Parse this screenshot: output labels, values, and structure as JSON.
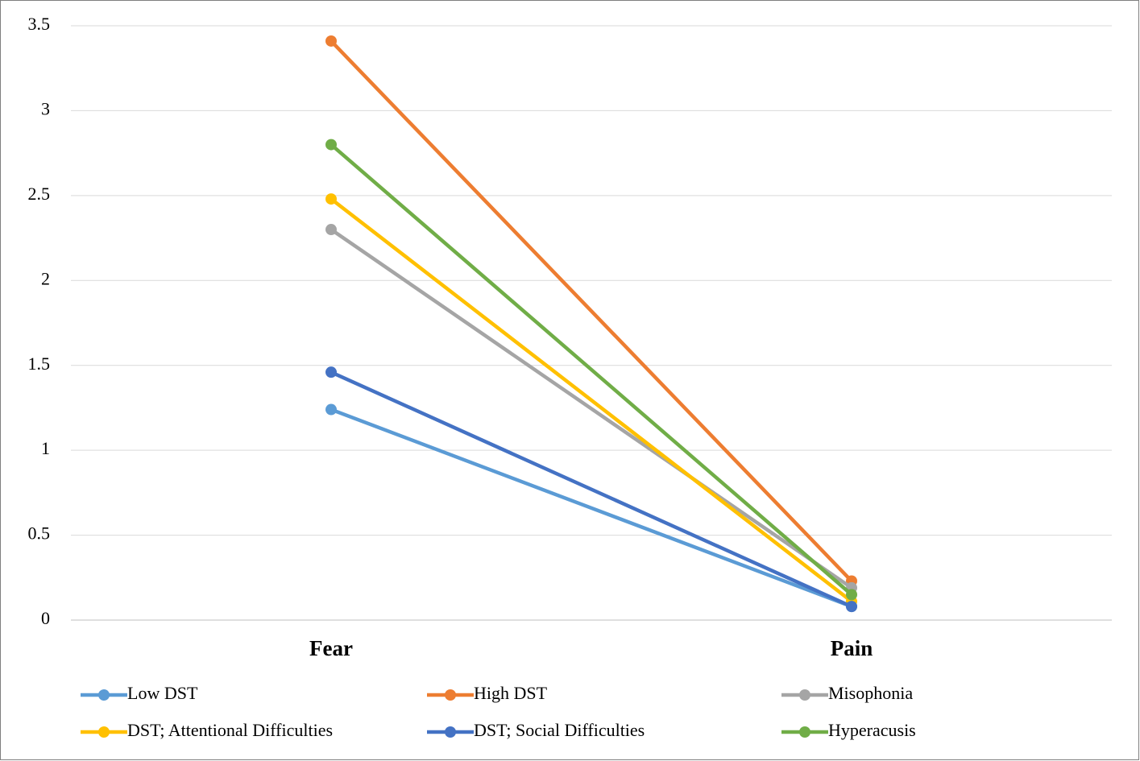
{
  "chart_data": {
    "type": "line",
    "categories": [
      "Fear",
      "Pain"
    ],
    "series": [
      {
        "name": "Low DST",
        "color": "#5b9bd5",
        "values": [
          1.24,
          0.08
        ]
      },
      {
        "name": "High DST",
        "color": "#ed7d31",
        "values": [
          3.41,
          0.23
        ]
      },
      {
        "name": "Misophonia",
        "color": "#a5a5a5",
        "values": [
          2.3,
          0.19
        ]
      },
      {
        "name": "DST; Attentional Difficulties",
        "color": "#ffc000",
        "values": [
          2.48,
          0.11
        ]
      },
      {
        "name": "DST; Social Difficulties",
        "color": "#4472c4",
        "values": [
          1.46,
          0.08
        ]
      },
      {
        "name": "Hyperacusis",
        "color": "#70ad47",
        "values": [
          2.8,
          0.15
        ]
      }
    ],
    "ylim": [
      0,
      3.5
    ],
    "yticks": [
      0,
      0.5,
      1,
      1.5,
      2,
      2.5,
      3,
      3.5
    ],
    "grid": true,
    "legend": "bottom"
  }
}
